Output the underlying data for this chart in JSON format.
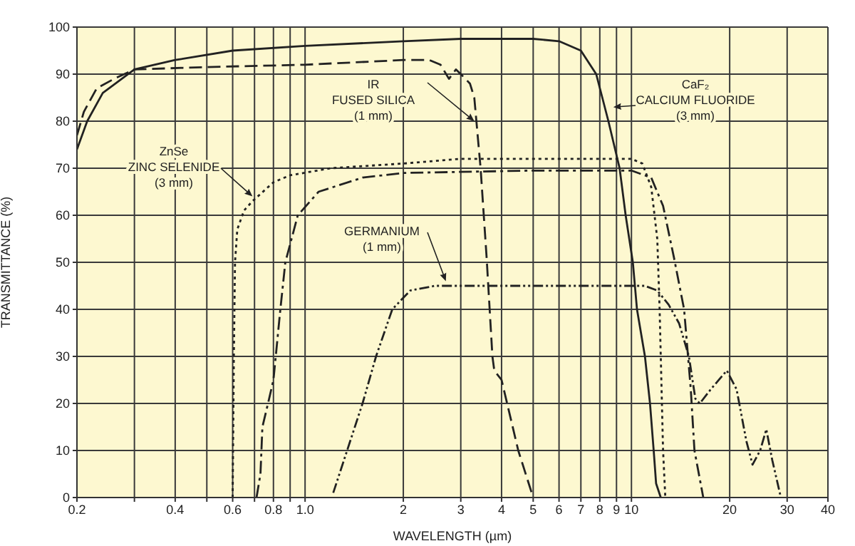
{
  "chart_data": {
    "type": "line",
    "xlabel": "WAVELENGTH (µm)",
    "ylabel": "TRANSMITTANCE (%)",
    "log": "x",
    "xlim": [
      0.2,
      40
    ],
    "ylim": [
      0,
      100
    ],
    "xticks": [
      0.2,
      {
        "value": 0.3,
        "label": null
      },
      0.4,
      {
        "value": 0.5,
        "label": null
      },
      0.6,
      {
        "value": 0.7,
        "label": null
      },
      0.8,
      {
        "value": 0.9,
        "label": null
      },
      {
        "value": 1,
        "label": "1.0"
      },
      2,
      3,
      4,
      5,
      6,
      7,
      8,
      9,
      10,
      20,
      30,
      40
    ],
    "yticks": [
      0,
      10,
      20,
      30,
      40,
      50,
      60,
      70,
      80,
      90,
      100
    ],
    "grid": true,
    "marker": "none",
    "series": [
      {
        "name": "CaF₂\nCALCIUM FLUORIDE\n(3 mm)",
        "color": "#222222",
        "line_style": "solid",
        "x": [
          0.2,
          0.215,
          0.24,
          0.3,
          0.4,
          0.6,
          1.0,
          2,
          3,
          5,
          6,
          7,
          7.8,
          8.5,
          9.2,
          9.6,
          10.1,
          10.4,
          11,
          11.4,
          11.7,
          11.9,
          12.3
        ],
        "values": [
          74,
          80,
          86,
          91,
          93,
          95,
          96,
          97,
          97.5,
          97.5,
          97,
          95,
          90,
          80,
          70,
          60,
          50,
          40,
          30,
          20,
          10,
          3,
          0
        ]
      },
      {
        "name": "IR\nFUSED SILICA\n(1 mm)",
        "color": "#222222",
        "line_style": "dashed",
        "x": [
          0.2,
          0.21,
          0.23,
          0.26,
          0.3,
          0.5,
          1.0,
          2.0,
          2.4,
          2.6,
          2.76,
          2.9,
          3.0,
          3.2,
          3.3,
          3.45,
          3.6,
          3.75,
          3.8,
          4.0,
          4.5,
          5.0
        ],
        "values": [
          77,
          82,
          87,
          89,
          91,
          91.5,
          92,
          93,
          93,
          92,
          89,
          91,
          90,
          88,
          85,
          70,
          51,
          30,
          27,
          25,
          10,
          0
        ]
      },
      {
        "name": "ZnSe\nZINC SELENIDE\n(3 mm)",
        "color": "#222222",
        "line_style": "dotted",
        "x": [
          0.6,
          0.605,
          0.61,
          0.62,
          0.65,
          0.69,
          0.8,
          0.9,
          1.2,
          2,
          3,
          5,
          10,
          10.8,
          11.5,
          12,
          12.2,
          12.5,
          12.7
        ],
        "values": [
          0,
          30,
          50,
          57,
          61,
          63,
          67,
          68.5,
          70,
          71,
          72,
          72,
          72,
          71,
          66,
          55,
          40,
          10,
          0
        ]
      },
      {
        "color": "#222222",
        "line_style": "dashdot",
        "x": [
          0.71,
          0.73,
          0.74,
          0.77,
          0.8,
          0.84,
          0.87,
          0.95,
          1.1,
          1.5,
          2,
          5,
          10,
          11.5,
          12.5,
          13.5,
          14.5,
          15.2,
          15.6,
          16.6
        ],
        "values": [
          0,
          5,
          15,
          20,
          25,
          40,
          50,
          60,
          65,
          68,
          69,
          69.5,
          69.5,
          68,
          62,
          51,
          40,
          23,
          10,
          0
        ]
      },
      {
        "name": "GERMANIUM\n(1 mm)",
        "color": "#222222",
        "line_style": "dashdotdot",
        "x": [
          1.22,
          1.5,
          1.65,
          1.85,
          2.1,
          2.5,
          5,
          11,
          12,
          13,
          14,
          15,
          15.7,
          16.2,
          17.5,
          19.6,
          21,
          22.5,
          23.5,
          24.8,
          25.9,
          27,
          28.7
        ],
        "values": [
          1,
          20,
          30,
          40,
          44,
          45,
          45,
          45,
          44,
          41,
          37,
          30,
          21,
          20,
          23,
          27,
          23,
          12,
          7,
          10,
          14.5,
          8,
          0
        ]
      }
    ]
  }
}
